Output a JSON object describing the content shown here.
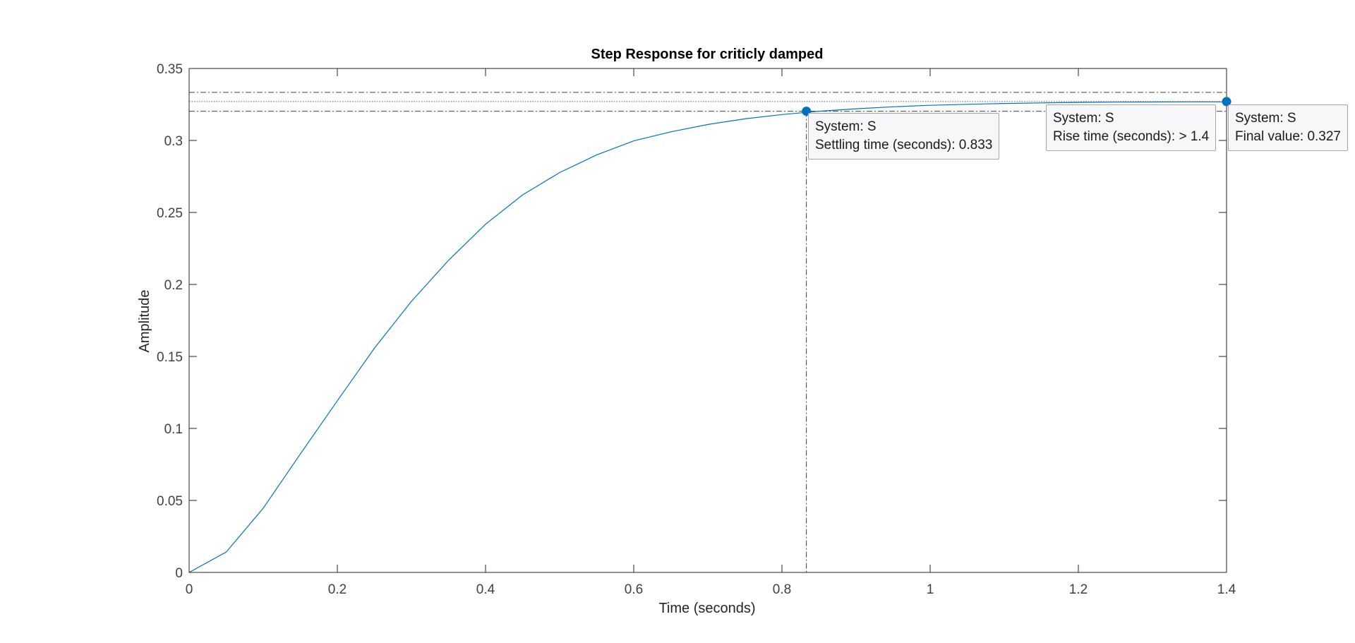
{
  "chart_data": {
    "type": "line",
    "title": "Step Response for criticly damped",
    "xlabel": "Time (seconds)",
    "ylabel": "Amplitude",
    "xlim": [
      0,
      1.4
    ],
    "ylim": [
      0,
      0.35
    ],
    "xticks": [
      0,
      0.2,
      0.4,
      0.6,
      0.8,
      1,
      1.2,
      1.4
    ],
    "xtick_labels": [
      "0",
      "0.2",
      "0.4",
      "0.6",
      "0.8",
      "1",
      "1.2",
      "1.4"
    ],
    "yticks": [
      0,
      0.05,
      0.1,
      0.15,
      0.2,
      0.25,
      0.3,
      0.35
    ],
    "ytick_labels": [
      "0",
      "0.05",
      "0.1",
      "0.15",
      "0.2",
      "0.25",
      "0.3",
      "0.35"
    ],
    "grid": false,
    "series": [
      {
        "color": "#0072bd",
        "x": [
          0,
          0.05,
          0.1,
          0.15,
          0.2,
          0.25,
          0.3,
          0.35,
          0.4,
          0.45,
          0.5,
          0.55,
          0.6,
          0.65,
          0.7,
          0.75,
          0.8,
          0.85,
          0.9,
          0.95,
          1.0,
          1.05,
          1.1,
          1.15,
          1.2,
          1.25,
          1.3,
          1.35,
          1.4
        ],
        "y": [
          0,
          0.0141,
          0.0446,
          0.0822,
          0.1192,
          0.1557,
          0.1883,
          0.2167,
          0.2418,
          0.2622,
          0.2777,
          0.29,
          0.2997,
          0.306,
          0.3111,
          0.315,
          0.318,
          0.3203,
          0.322,
          0.3234,
          0.3244,
          0.3251,
          0.3257,
          0.3261,
          0.3264,
          0.3266,
          0.3267,
          0.3268,
          0.3268
        ]
      }
    ],
    "reference_lines": {
      "final_value": 0.327,
      "settling_band_upper": 0.3334,
      "settling_band_lower": 0.3203,
      "settling_time": 0.833
    },
    "markers": [
      {
        "name": "settling",
        "x": 0.833,
        "y": 0.3203,
        "color": "#0072bd"
      },
      {
        "name": "final",
        "x": 1.4,
        "y": 0.327,
        "color": "#0072bd"
      }
    ]
  },
  "datatips": {
    "settling": {
      "line1": "System: S",
      "line2": "Settling time (seconds): 0.833"
    },
    "rise": {
      "line1": "System: S",
      "line2": "Rise time (seconds): > 1.4"
    },
    "final": {
      "line1": "System: S",
      "line2": "Final value: 0.327"
    }
  }
}
